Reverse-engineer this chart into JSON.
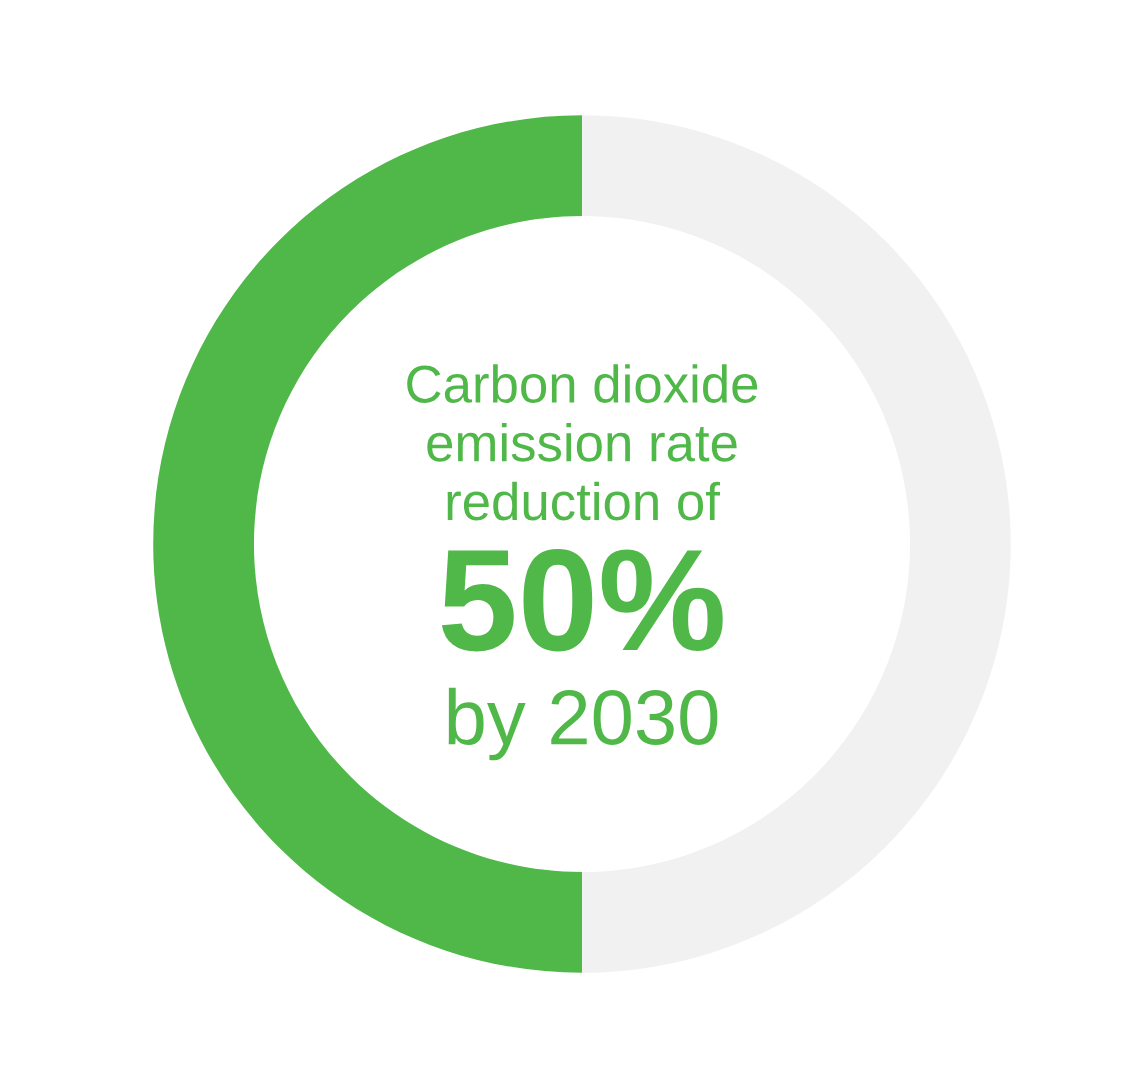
{
  "chart_data": {
    "type": "donut",
    "categories": [
      null,
      null
    ],
    "values": [
      50,
      50
    ],
    "colors": [
      "#4fb848",
      "#f1f1f1"
    ],
    "annotations": [
      "Carbon dioxide\nemission rate\nreduction of",
      "50%",
      "by 2030"
    ]
  }
}
